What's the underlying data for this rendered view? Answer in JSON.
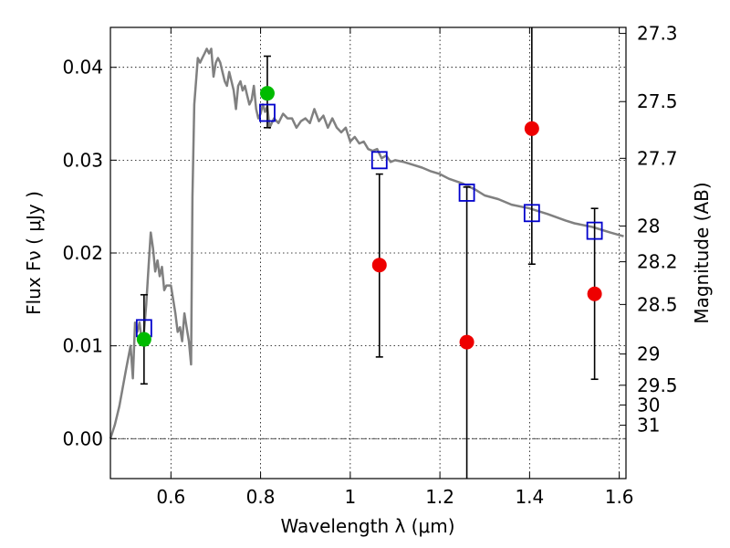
{
  "chart_data": {
    "type": "scatter",
    "xlabel": "Wavelength  λ (μm)",
    "ylabel": "Flux  Fν  ( μJy )",
    "ylabel_right": "Magnitude (AB)",
    "xlim": [
      0.465,
      1.615
    ],
    "ylim": [
      -0.0043,
      0.0443
    ],
    "grid": true,
    "x_ticks": [
      0.6,
      0.8,
      1.0,
      1.2,
      1.4,
      1.6
    ],
    "x_tick_labels": [
      "0.6",
      "0.8",
      "1",
      "1.2",
      "1.4",
      "1.6"
    ],
    "y_ticks": [
      0.0,
      0.01,
      0.02,
      0.03,
      0.04
    ],
    "y_tick_labels": [
      "0.00",
      "0.01",
      "0.02",
      "0.03",
      "0.04"
    ],
    "right_ticks": [
      {
        "label": "27.3",
        "mag": 27.3
      },
      {
        "label": "27.5",
        "mag": 27.5
      },
      {
        "label": "27.7",
        "mag": 27.7
      },
      {
        "label": "28",
        "mag": 28.0
      },
      {
        "label": "28.2",
        "mag": 28.2
      },
      {
        "label": "28.5",
        "mag": 28.5
      },
      {
        "label": "29",
        "mag": 29.0
      },
      {
        "label": "29.5",
        "mag": 29.5
      },
      {
        "label": "30",
        "mag": 30.0
      },
      {
        "label": "31",
        "mag": 31.0
      }
    ],
    "series": [
      {
        "name": "model spectrum",
        "style": "line",
        "color": "#808080",
        "x": [
          0.465,
          0.475,
          0.485,
          0.5,
          0.51,
          0.515,
          0.52,
          0.525,
          0.53,
          0.535,
          0.54,
          0.545,
          0.55,
          0.555,
          0.56,
          0.565,
          0.57,
          0.575,
          0.58,
          0.585,
          0.59,
          0.6,
          0.61,
          0.615,
          0.62,
          0.625,
          0.63,
          0.635,
          0.64,
          0.645,
          0.648,
          0.652,
          0.66,
          0.665,
          0.67,
          0.675,
          0.68,
          0.685,
          0.69,
          0.695,
          0.7,
          0.705,
          0.71,
          0.715,
          0.72,
          0.725,
          0.73,
          0.735,
          0.74,
          0.745,
          0.75,
          0.755,
          0.76,
          0.765,
          0.77,
          0.775,
          0.78,
          0.785,
          0.79,
          0.795,
          0.8,
          0.805,
          0.81,
          0.815,
          0.82,
          0.83,
          0.84,
          0.85,
          0.86,
          0.87,
          0.88,
          0.89,
          0.9,
          0.91,
          0.92,
          0.93,
          0.94,
          0.95,
          0.96,
          0.97,
          0.98,
          0.99,
          1.0,
          1.01,
          1.02,
          1.03,
          1.04,
          1.05,
          1.06,
          1.07,
          1.08,
          1.09,
          1.1,
          1.12,
          1.14,
          1.16,
          1.18,
          1.2,
          1.22,
          1.25,
          1.28,
          1.3,
          1.33,
          1.36,
          1.4,
          1.44,
          1.48,
          1.5,
          1.54,
          1.58,
          1.61
        ],
        "y": [
          0.0,
          0.0015,
          0.0035,
          0.0075,
          0.01,
          0.0065,
          0.0125,
          0.0115,
          0.0125,
          0.0105,
          0.0115,
          0.0145,
          0.0185,
          0.0222,
          0.0205,
          0.018,
          0.0192,
          0.0175,
          0.0185,
          0.016,
          0.0165,
          0.0165,
          0.0135,
          0.0115,
          0.012,
          0.0105,
          0.0135,
          0.012,
          0.0105,
          0.008,
          0.026,
          0.036,
          0.041,
          0.0405,
          0.041,
          0.0415,
          0.042,
          0.0415,
          0.042,
          0.039,
          0.0405,
          0.041,
          0.0405,
          0.0395,
          0.0385,
          0.038,
          0.0395,
          0.0385,
          0.0375,
          0.0355,
          0.038,
          0.0385,
          0.0375,
          0.038,
          0.037,
          0.036,
          0.0365,
          0.038,
          0.0355,
          0.0345,
          0.035,
          0.036,
          0.0352,
          0.0358,
          0.0335,
          0.0345,
          0.034,
          0.035,
          0.0345,
          0.0345,
          0.0335,
          0.0342,
          0.0345,
          0.034,
          0.0355,
          0.0342,
          0.0348,
          0.0335,
          0.0345,
          0.0335,
          0.033,
          0.0335,
          0.032,
          0.0325,
          0.0318,
          0.032,
          0.0312,
          0.031,
          0.0312,
          0.0302,
          0.0305,
          0.0298,
          0.03,
          0.0298,
          0.0295,
          0.0292,
          0.0288,
          0.0285,
          0.028,
          0.0275,
          0.0268,
          0.0262,
          0.0258,
          0.0252,
          0.0248,
          0.0242,
          0.0235,
          0.0232,
          0.0228,
          0.0222,
          0.0218
        ]
      },
      {
        "name": "model band flux",
        "style": "open-square",
        "color": "#0000cc",
        "x": [
          0.54,
          0.815,
          1.065,
          1.26,
          1.405,
          1.545
        ],
        "y": [
          0.0119,
          0.0351,
          0.03,
          0.0265,
          0.0243,
          0.0224
        ]
      },
      {
        "name": "detections",
        "style": "filled-circle",
        "color": "#00bb00",
        "x": [
          0.54,
          0.815
        ],
        "y": [
          0.0107,
          0.0372
        ],
        "yerr_low": [
          0.0059,
          0.0335
        ],
        "yerr_high": [
          0.0155,
          0.0412
        ]
      },
      {
        "name": "upper limits",
        "style": "filled-circle",
        "color": "#ee0000",
        "x": [
          1.065,
          1.26,
          1.405,
          1.545
        ],
        "y": [
          0.0187,
          0.0104,
          0.0334,
          0.0156
        ],
        "yerr_low": [
          0.0088,
          -0.0043,
          0.0188,
          0.0064
        ],
        "yerr_high": [
          0.0285,
          0.0271,
          0.0443,
          0.0248
        ]
      }
    ]
  }
}
